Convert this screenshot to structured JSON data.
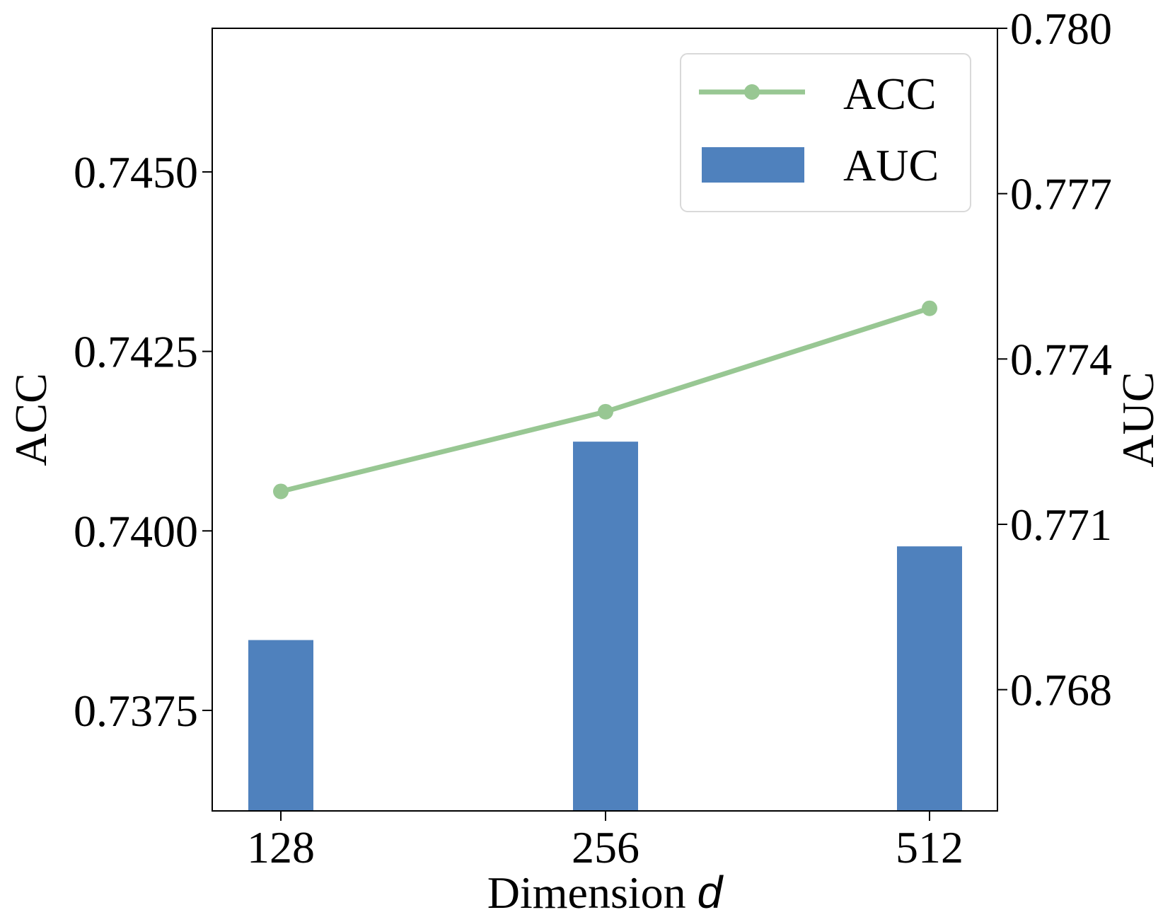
{
  "chart_data": {
    "type": "bar",
    "categories": [
      "128",
      "256",
      "512"
    ],
    "xlabel": "Dimension",
    "xlabel_var": "d",
    "ylabel_left": "ACC",
    "ylabel_right": "AUC",
    "series": [
      {
        "name": "AUC",
        "kind": "bar",
        "axis": "right",
        "values": [
          0.7689,
          0.7725,
          0.7706
        ],
        "color": "#4f81bd"
      },
      {
        "name": "ACC",
        "kind": "line",
        "axis": "left",
        "values": [
          0.74055,
          0.74166,
          0.7431
        ],
        "color": "#98c793"
      }
    ],
    "ylim_left": [
      0.7361,
      0.747
    ],
    "ylim_right": [
      0.7658,
      0.78
    ],
    "yticks_left": [
      "0.7375",
      "0.7400",
      "0.7425",
      "0.7450"
    ],
    "yticks_left_values": [
      0.7375,
      0.74,
      0.7425,
      0.745
    ],
    "yticks_right": [
      "0.768",
      "0.771",
      "0.774",
      "0.777",
      "0.780"
    ],
    "yticks_right_values": [
      0.768,
      0.771,
      0.774,
      0.777,
      0.78
    ],
    "grid": false,
    "legend_position": "top-right",
    "legend": [
      {
        "label": "ACC",
        "kind": "line",
        "color": "#98c793"
      },
      {
        "label": "AUC",
        "kind": "bar",
        "color": "#4f81bd"
      }
    ]
  }
}
